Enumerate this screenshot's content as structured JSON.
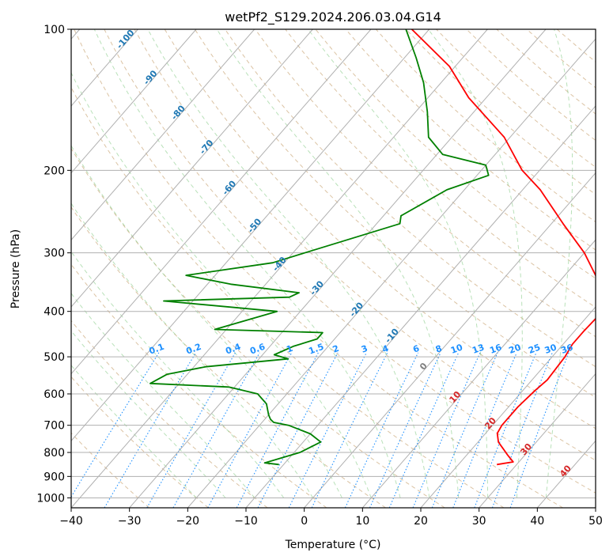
{
  "chart_data": {
    "type": "line",
    "title": "wetPf2_S129.2024.206.03.04.G14",
    "xlabel": "Temperature (°C)",
    "ylabel": "Pressure (hPa)",
    "xlim": [
      -40,
      50
    ],
    "ylim": [
      1050,
      100
    ],
    "y_scale": "log",
    "x_ticks": [
      "−40",
      "−30",
      "−20",
      "−10",
      "0",
      "10",
      "20",
      "30",
      "40",
      "50"
    ],
    "y_ticks": [
      "100",
      "200",
      "300",
      "400",
      "500",
      "600",
      "700",
      "800",
      "900",
      "1000"
    ],
    "grid": true,
    "series": [
      {
        "role": "temperature",
        "color": "#ff0000",
        "p": [
          849,
          838,
          810,
          760,
          728,
          700,
          640,
          590,
          560,
          500,
          470,
          440,
          410,
          395,
          380,
          365,
          340,
          300,
          260,
          220,
          200,
          170,
          140,
          120,
          100
        ],
        "t": [
          26.6,
          29,
          27,
          23.5,
          22,
          21.6,
          21.6,
          22.1,
          22.6,
          22.2,
          21.6,
          21.6,
          21.8,
          21.3,
          20.4,
          19.2,
          16,
          10,
          2,
          -7,
          -13,
          -21,
          -33,
          -41,
          -53
        ]
      },
      {
        "role": "dewpoint",
        "color": "#008000",
        "p": [
          849,
          842,
          800,
          760,
          730,
          700,
          690,
          680,
          665,
          630,
          600,
          580,
          570,
          545,
          525,
          505,
          495,
          475,
          458,
          444,
          437,
          400,
          380,
          373,
          365,
          350,
          335,
          315,
          300,
          260,
          250,
          220,
          205,
          195,
          185,
          170,
          150,
          130,
          115,
          100
        ],
        "t": [
          -10.8,
          -13.5,
          -9,
          -7,
          -10,
          -15,
          -18,
          -19,
          -20,
          -22,
          -25,
          -31,
          -45,
          -43.5,
          -38,
          -25,
          -28,
          -26,
          -23,
          -23,
          -42,
          -34,
          -55,
          -34,
          -33,
          -46,
          -55,
          -42,
          -38,
          -26,
          -27,
          -23,
          -18,
          -20,
          -29,
          -34,
          -38,
          -43,
          -48,
          -54
        ]
      }
    ],
    "isotherm_labels": [
      "-100",
      "-90",
      "-80",
      "-70",
      "-60",
      "-50",
      "-40",
      "-30",
      "-20",
      "-10",
      "0",
      "10",
      "20",
      "30",
      "40"
    ],
    "mixing_ratio_labels": [
      "0.1",
      "0.2",
      "0.4",
      "0.6",
      "1",
      "1.5",
      "2",
      "3",
      "4",
      "6",
      "8",
      "10",
      "13",
      "16",
      "20",
      "25",
      "30",
      "36"
    ]
  }
}
